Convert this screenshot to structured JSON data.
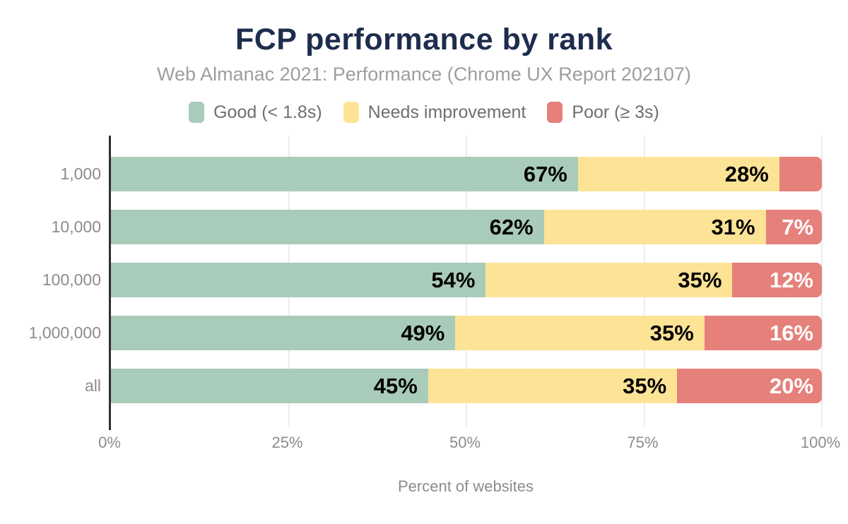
{
  "header": {
    "title": "FCP performance by rank",
    "subtitle": "Web Almanac 2021: Performance (Chrome UX Report 202107)"
  },
  "colors": {
    "title_text": "#1e2d4e",
    "subtitle_text": "#9e9e9e",
    "legend_text": "#6f6f6f",
    "axis_text": "#8c8c8c",
    "axis_line": "#2f2f2f",
    "gridline": "#ececec",
    "good": "#a9cbba",
    "needs_improvement": "#fde395",
    "poor": "#e5807a"
  },
  "chart_data": {
    "type": "bar",
    "stacked": true,
    "orientation": "horizontal",
    "title": "FCP performance by rank",
    "subtitle": "Web Almanac 2021: Performance (Chrome UX Report 202107)",
    "xlabel": "Percent of websites",
    "ylabel": "",
    "xlim": [
      0,
      100
    ],
    "grid": "vertical",
    "legend_position": "top",
    "x_ticks": [
      {
        "label": "0%",
        "value": 0
      },
      {
        "label": "25%",
        "value": 25
      },
      {
        "label": "50%",
        "value": 50
      },
      {
        "label": "75%",
        "value": 75
      },
      {
        "label": "100%",
        "value": 100
      }
    ],
    "categories": [
      "1,000",
      "10,000",
      "100,000",
      "1,000,000",
      "all"
    ],
    "series": [
      {
        "key": "good",
        "name": "Good (< 1.8s)",
        "color": "#a9cbba",
        "label_color": "#000000",
        "values": [
          67,
          62,
          54,
          49,
          45
        ],
        "labels": [
          "67%",
          "62%",
          "54%",
          "49%",
          "45%"
        ]
      },
      {
        "key": "needs-improvement",
        "name": "Needs improvement",
        "color": "#fde395",
        "label_color": "#000000",
        "values": [
          28,
          31,
          35,
          35,
          35
        ],
        "labels": [
          "28%",
          "31%",
          "35%",
          "35%",
          "35%"
        ]
      },
      {
        "key": "poor",
        "name": "Poor (≥ 3s)",
        "color": "#e5807a",
        "label_color": "#ffffff",
        "values": [
          5,
          7,
          12,
          16,
          20
        ],
        "labels": [
          "",
          "7%",
          "12%",
          "16%",
          "20%"
        ]
      }
    ]
  }
}
